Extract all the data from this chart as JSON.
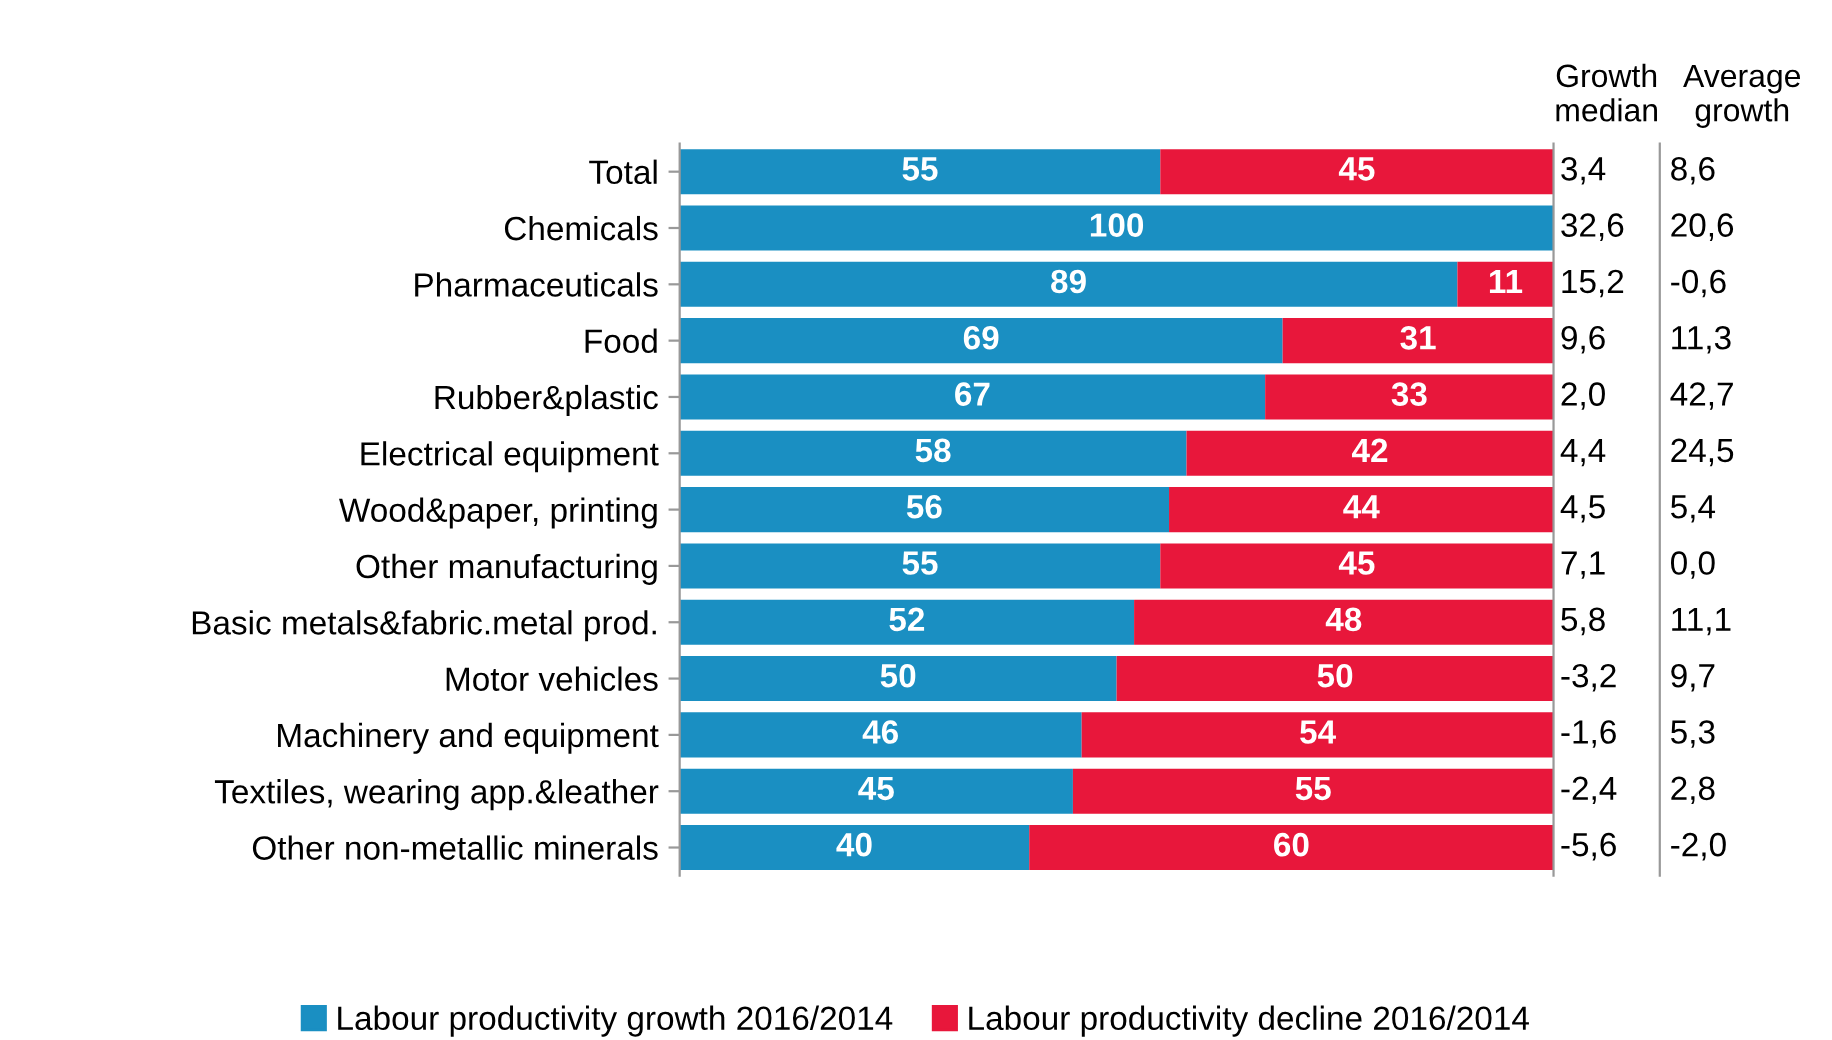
{
  "chart_data": [
    {
      "type": "bar",
      "orientation": "horizontal",
      "stacked": true,
      "data_labels": true,
      "xlim": [
        0,
        100
      ],
      "legend": "bottom",
      "grid": false,
      "categories": [
        "Total",
        "Chemicals",
        "Pharmaceuticals",
        "Food",
        "Rubber&plastic",
        "Electrical equipment",
        "Wood&paper, printing",
        "Other manufacturing",
        "Basic metals&fabric.metal prod.",
        "Motor vehicles",
        "Machinery and equipment",
        "Textiles, wearing app.&leather",
        "Other non-metallic minerals"
      ],
      "series": [
        {
          "name": "Labour productivity growth 2016/2014",
          "color": "#1a8fc2",
          "values": [
            55,
            100,
            89,
            69,
            67,
            58,
            56,
            55,
            52,
            50,
            46,
            45,
            40
          ]
        },
        {
          "name": "Labour productivity decline 2016/2014",
          "color": "#e8173b",
          "values": [
            45,
            null,
            11,
            31,
            33,
            42,
            44,
            45,
            48,
            50,
            54,
            55,
            60
          ]
        }
      ]
    },
    {
      "type": "other",
      "title": "Growth\nmedian",
      "annotations": [
        "3,4",
        "32,6",
        "15,2",
        "9,6",
        "2,0",
        "4,4",
        "4,5",
        "7,1",
        "5,8",
        "-3,2",
        "-1,6",
        "-2,4",
        "-5,6"
      ]
    },
    {
      "type": "other",
      "title": "Average\ngrowth",
      "annotations": [
        "8,6",
        "20,6",
        "-0,6",
        "11,3",
        "42,7",
        "24,5",
        "5,4",
        "0,0",
        "11,1",
        "9,7",
        "5,3",
        "2,8",
        "-2,0"
      ]
    }
  ]
}
